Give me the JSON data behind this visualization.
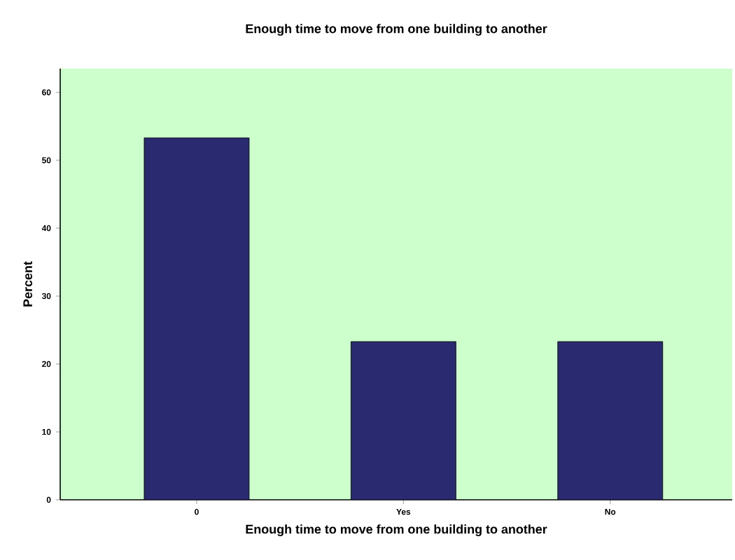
{
  "chart_data": {
    "type": "bar",
    "title": "Enough time to move from one building to another",
    "xlabel": "Enough time to move from one building to another",
    "ylabel": "Percent",
    "categories": [
      "0",
      "Yes",
      "No"
    ],
    "values": [
      53.3,
      23.3,
      23.3
    ],
    "color": "#292a70",
    "ylim": [
      0,
      63.5
    ],
    "yticks": [
      0,
      10,
      20,
      30,
      40,
      50,
      60
    ]
  }
}
